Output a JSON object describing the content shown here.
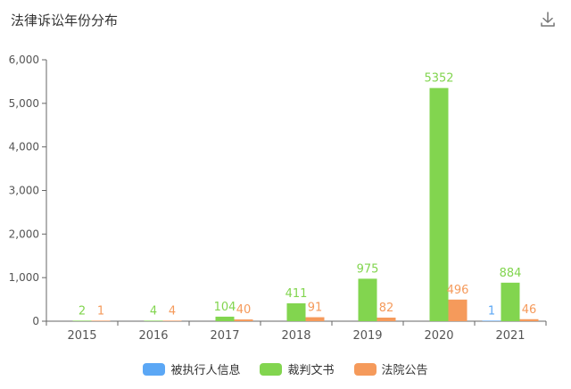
{
  "header": {
    "title": "法律诉讼年份分布",
    "download_icon": "download-icon"
  },
  "colors": {
    "被执行人信息": "#5ba7f5",
    "裁判文书": "#82d54f",
    "法院公告": "#f59a5b",
    "axis": "#666666",
    "grid": "#eeeeee"
  },
  "chart_data": {
    "type": "bar",
    "categories": [
      "2015",
      "2016",
      "2017",
      "2018",
      "2019",
      "2020",
      "2021"
    ],
    "series": [
      {
        "name": "被执行人信息",
        "values": [
          null,
          null,
          null,
          null,
          null,
          null,
          1
        ]
      },
      {
        "name": "裁判文书",
        "values": [
          2,
          4,
          104,
          411,
          975,
          5352,
          884
        ]
      },
      {
        "name": "法院公告",
        "values": [
          1,
          4,
          40,
          91,
          82,
          496,
          46
        ]
      }
    ],
    "ylim": [
      0,
      6000
    ],
    "yticks": [
      0,
      1000,
      2000,
      3000,
      4000,
      5000,
      6000
    ],
    "ytick_labels": [
      "0",
      "1,000",
      "2,000",
      "3,000",
      "4,000",
      "5,000",
      "6,000"
    ],
    "legend_position": "bottom-center",
    "grid": false
  }
}
